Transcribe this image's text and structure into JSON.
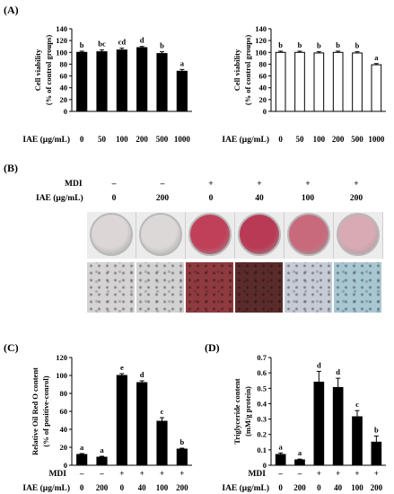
{
  "panels": {
    "A": "(A)",
    "B": "(B)",
    "C": "(C)",
    "D": "(D)"
  },
  "panel_b": {
    "mdi_label": "MDI",
    "iae_label": "IAE (μg/mL)",
    "mdi_values": [
      "–",
      "–",
      "+",
      "+",
      "+",
      "+"
    ],
    "iae_values": [
      "0",
      "200",
      "0",
      "40",
      "100",
      "200"
    ],
    "dish_colors": [
      "#dcd6d6",
      "#ddd8d8",
      "#c0405a",
      "#b93a55",
      "#c86a7c",
      "#d8aab4"
    ],
    "photo_colors": [
      "#d5d3d3",
      "#d3d2d2",
      "#8e3a3e",
      "#5b2b2b",
      "#c6ccd6",
      "#a8c7d3"
    ]
  },
  "chart_data": [
    {
      "type": "bar",
      "panel": "A",
      "categories": [
        "0",
        "50",
        "100",
        "200",
        "500",
        "1000"
      ],
      "values": [
        100,
        101,
        104,
        108,
        98,
        68
      ],
      "errors": [
        2,
        3,
        3,
        2,
        3,
        3
      ],
      "labels": [
        "b",
        "bc",
        "cd",
        "d",
        "b",
        "a"
      ],
      "ylabel": [
        "Cell viability",
        "(% of control groups)"
      ],
      "xlabel": "IAE (μg/mL)",
      "xrow_labels": [],
      "ylim": [
        0,
        140
      ],
      "ticks": [
        0,
        20,
        40,
        60,
        80,
        100,
        120,
        140
      ],
      "tick_labels": [
        "0",
        "20",
        "40",
        "60",
        "80",
        "100",
        "120",
        "140"
      ],
      "fill": "#000000"
    },
    {
      "type": "bar",
      "panel": "A",
      "categories": [
        "0",
        "50",
        "100",
        "200",
        "500",
        "1000"
      ],
      "values": [
        100,
        100,
        99,
        100,
        99,
        79
      ],
      "errors": [
        2,
        2,
        2,
        2,
        2,
        2
      ],
      "labels": [
        "b",
        "b",
        "b",
        "b",
        "b",
        "a"
      ],
      "ylabel": [
        "Cell viability",
        "(% of control groups)"
      ],
      "xlabel": "IAE (μg/mL)",
      "xrow_labels": [],
      "ylim": [
        0,
        140
      ],
      "ticks": [
        0,
        20,
        40,
        60,
        80,
        100,
        120,
        140
      ],
      "tick_labels": [
        "0",
        "20",
        "40",
        "60",
        "80",
        "100",
        "120",
        "140"
      ],
      "fill": "#ffffff"
    },
    {
      "type": "bar",
      "panel": "C",
      "categories": [
        "0",
        "200",
        "0",
        "40",
        "100",
        "200"
      ],
      "mdi": [
        "–",
        "–",
        "+",
        "+",
        "+",
        "+"
      ],
      "values": [
        12,
        9,
        100,
        92,
        49,
        18
      ],
      "errors": [
        1,
        1,
        2,
        2,
        4,
        1
      ],
      "labels": [
        "a",
        "a",
        "e",
        "d",
        "c",
        "b"
      ],
      "ylabel": [
        "Relative Oil Red O content",
        "(% of positive-conrol)"
      ],
      "xlabel": "IAE (μg/mL)",
      "xrow_labels": [
        "MDI"
      ],
      "ylim": [
        0,
        120
      ],
      "ticks": [
        0,
        20,
        40,
        60,
        80,
        100,
        120
      ],
      "tick_labels": [
        "0",
        "20",
        "40",
        "60",
        "80",
        "100",
        "120"
      ],
      "fill": "#000000"
    },
    {
      "type": "bar",
      "panel": "D",
      "categories": [
        "0",
        "200",
        "0",
        "40",
        "100",
        "200"
      ],
      "mdi": [
        "–",
        "–",
        "+",
        "+",
        "+",
        "+"
      ],
      "values": [
        0.07,
        0.035,
        0.54,
        0.505,
        0.315,
        0.15
      ],
      "errors": [
        0.01,
        0.005,
        0.07,
        0.06,
        0.04,
        0.04
      ],
      "labels": [
        "a",
        "a",
        "d",
        "d",
        "c",
        "b"
      ],
      "ylabel": [
        "Triglyceride content",
        "(mM/g protein)"
      ],
      "xlabel": "IAE (μg/mL)",
      "xrow_labels": [
        "MDI"
      ],
      "ylim": [
        0,
        0.7
      ],
      "ticks": [
        0,
        0.1,
        0.2,
        0.3,
        0.4,
        0.5,
        0.6,
        0.7
      ],
      "tick_labels": [
        "0",
        "0.1",
        "0.2",
        "0.3",
        "0.4",
        "0.5",
        "0.6",
        "0.7"
      ],
      "fill": "#000000"
    }
  ]
}
